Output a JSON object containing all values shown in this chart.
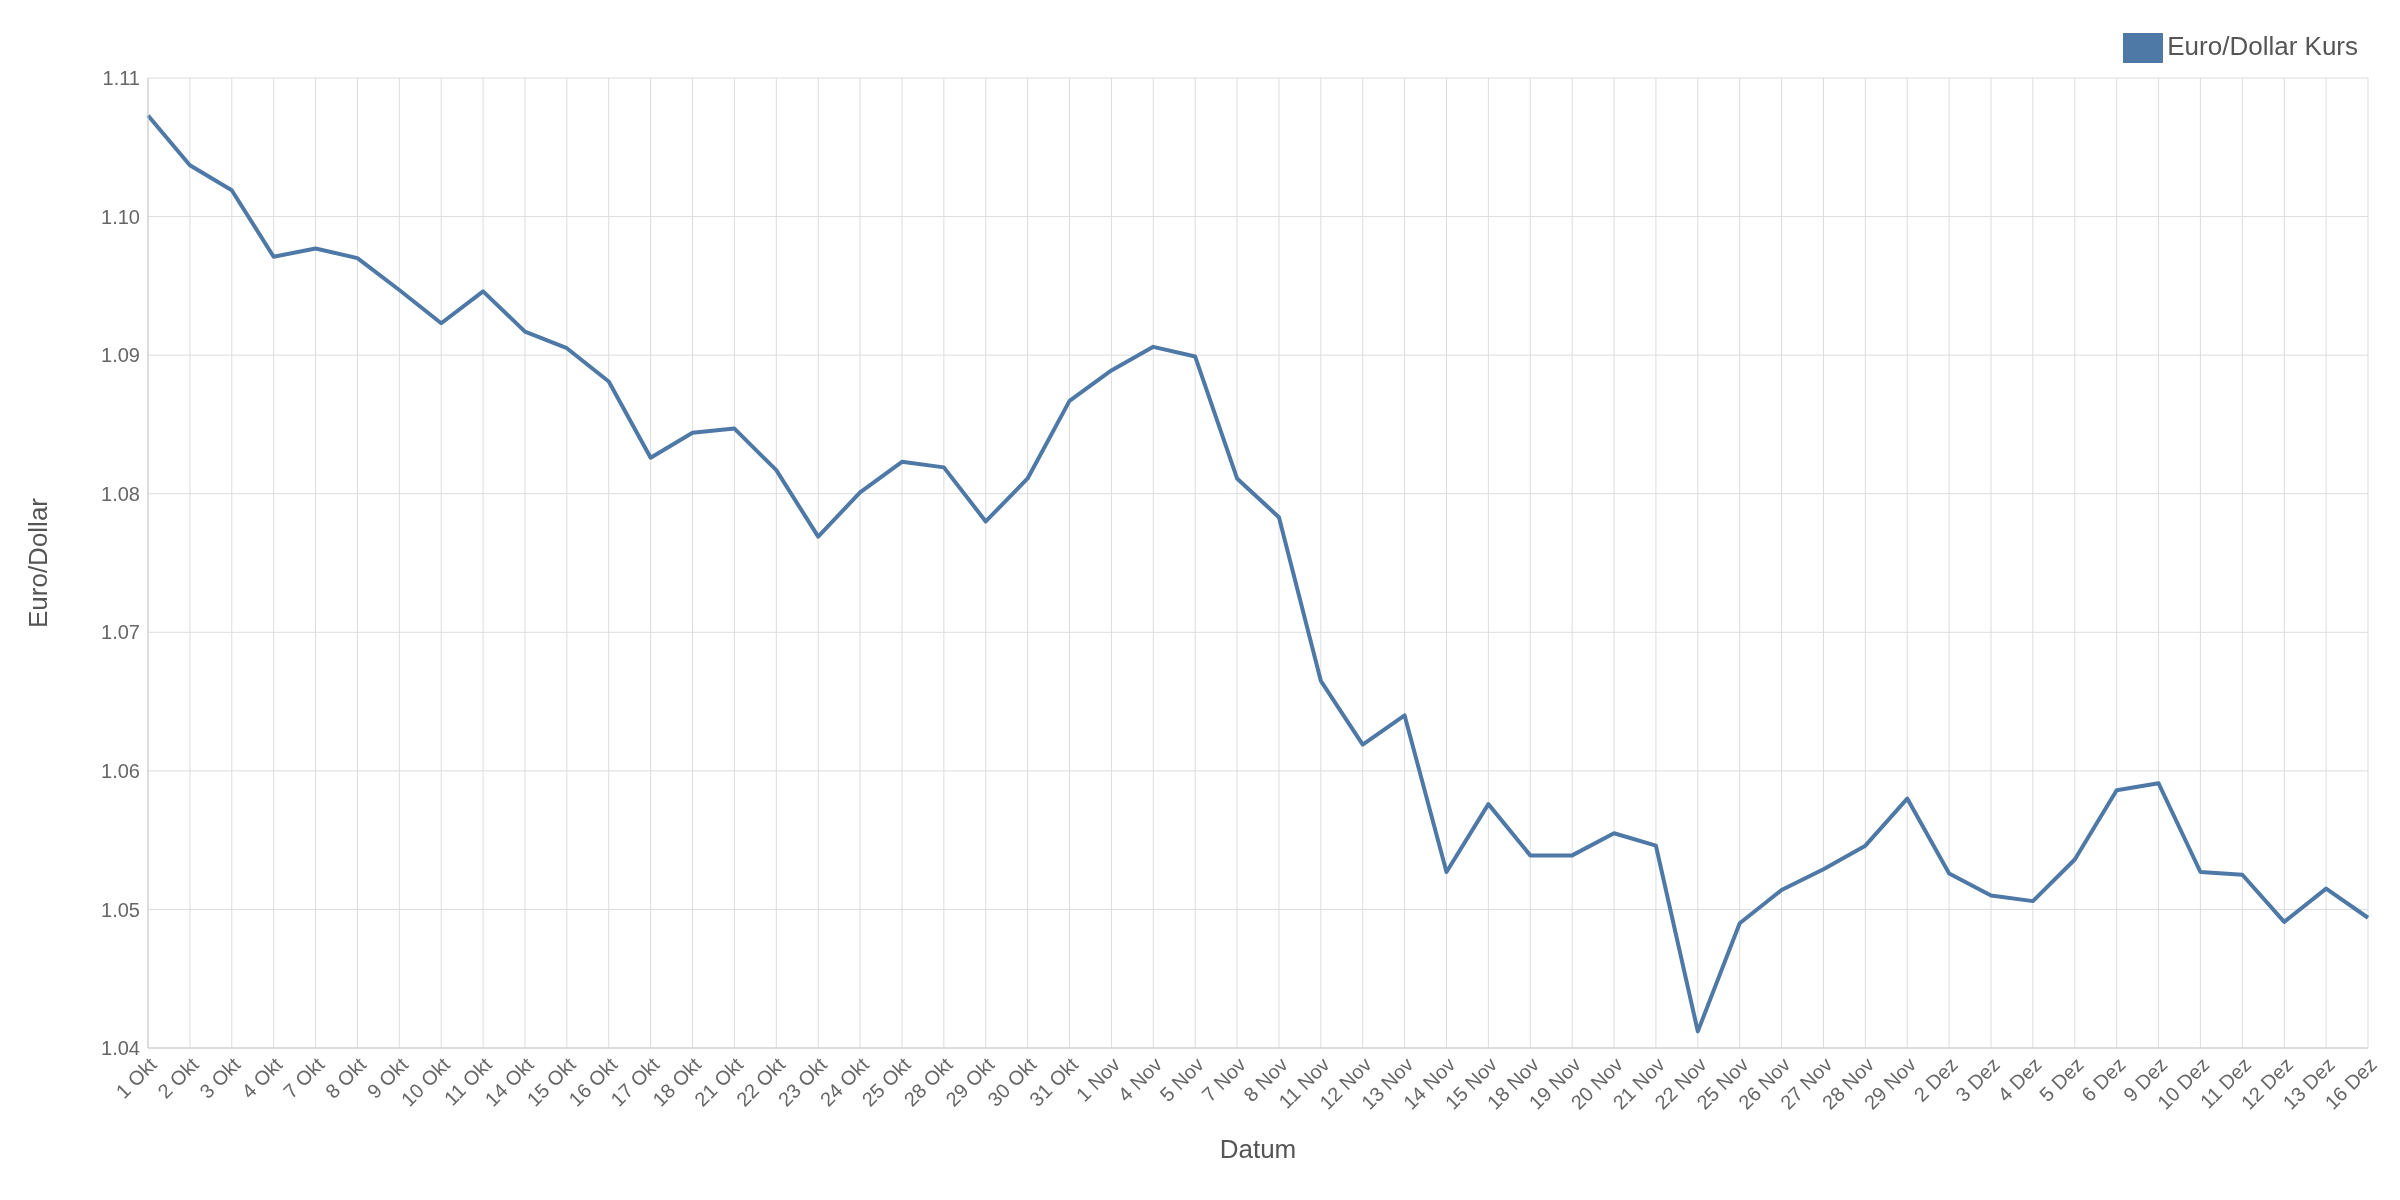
{
  "chart_data": {
    "type": "line",
    "xlabel": "Datum",
    "ylabel": "Euro/Dollar",
    "categories": [
      "1 Okt",
      "2 Okt",
      "3 Okt",
      "4 Okt",
      "7 Okt",
      "8 Okt",
      "9 Okt",
      "10 Okt",
      "11 Okt",
      "14 Okt",
      "15 Okt",
      "16 Okt",
      "17 Okt",
      "18 Okt",
      "21 Okt",
      "22 Okt",
      "23 Okt",
      "24 Okt",
      "25 Okt",
      "28 Okt",
      "29 Okt",
      "30 Okt",
      "31 Okt",
      "1 Nov",
      "4 Nov",
      "5 Nov",
      "7 Nov",
      "8 Nov",
      "11 Nov",
      "12 Nov",
      "13 Nov",
      "14 Nov",
      "15 Nov",
      "18 Nov",
      "19 Nov",
      "20 Nov",
      "21 Nov",
      "22 Nov",
      "25 Nov",
      "26 Nov",
      "27 Nov",
      "28 Nov",
      "29 Nov",
      "2 Dez",
      "3 Dez",
      "4 Dez",
      "5 Dez",
      "6 Dez",
      "9 Dez",
      "10 Dez",
      "11 Dez",
      "12 Dez",
      "13 Dez",
      "16 Dez"
    ],
    "series": [
      {
        "name": "Euro/Dollar Kurs",
        "color": "#4e79a7",
        "values": [
          1.1073,
          1.1037,
          1.1019,
          1.0971,
          1.0977,
          1.097,
          1.0947,
          1.0923,
          1.0946,
          1.0917,
          1.0905,
          1.0881,
          1.0826,
          1.0844,
          1.0847,
          1.0817,
          1.0769,
          1.0801,
          1.0823,
          1.0819,
          1.078,
          1.0811,
          1.0867,
          1.0889,
          1.0906,
          1.0899,
          1.0811,
          1.0783,
          1.0665,
          1.0619,
          1.064,
          1.0527,
          1.0576,
          1.0539,
          1.0539,
          1.0555,
          1.0546,
          1.0412,
          1.049,
          1.0514,
          1.0529,
          1.0546,
          1.058,
          1.0526,
          1.051,
          1.0506,
          1.0536,
          1.0586,
          1.0591,
          1.0527,
          1.0525,
          1.0491,
          1.0515,
          1.0494
        ]
      }
    ],
    "ylim": [
      1.04,
      1.11
    ],
    "yticks": [
      1.04,
      1.05,
      1.06,
      1.07,
      1.08,
      1.09,
      {
        "value": 1.1,
        "label": "1.10"
      },
      1.11
    ],
    "grid": true,
    "legend": "top right"
  }
}
